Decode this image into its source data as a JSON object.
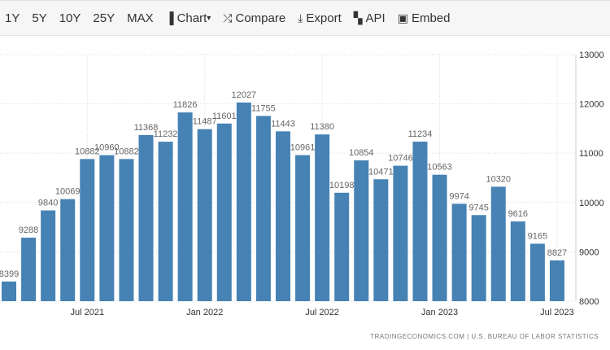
{
  "toolbar": {
    "items": [
      {
        "label": "1Y",
        "icon": ""
      },
      {
        "label": "5Y",
        "icon": ""
      },
      {
        "label": "10Y",
        "icon": ""
      },
      {
        "label": "25Y",
        "icon": ""
      },
      {
        "label": "MAX",
        "icon": ""
      },
      {
        "label": "Chart",
        "icon": "bar-chart-icon"
      },
      {
        "label": "Compare",
        "icon": "shuffle-icon"
      },
      {
        "label": "Export",
        "icon": "download-icon"
      },
      {
        "label": "API",
        "icon": "grid-icon"
      },
      {
        "label": "Embed",
        "icon": "image-icon"
      }
    ]
  },
  "source": "TRADINGECONOMICS.COM | U.S. BUREAU OF LABOR STATISTICS",
  "colors": {
    "bar": "#4682b4",
    "label": "#666666"
  },
  "chart_data": {
    "type": "bar",
    "title": "",
    "categories": [
      "Mar 2021",
      "Apr 2021",
      "May 2021",
      "Jun 2021",
      "Jul 2021",
      "Aug 2021",
      "Sep 2021",
      "Oct 2021",
      "Nov 2021",
      "Dec 2021",
      "Jan 2022",
      "Feb 2022",
      "Mar 2022",
      "Apr 2022",
      "May 2022",
      "Jun 2022",
      "Jul 2022",
      "Aug 2022",
      "Sep 2022",
      "Oct 2022",
      "Nov 2022",
      "Dec 2022",
      "Jan 2023",
      "Feb 2023",
      "Mar 2023",
      "Apr 2023",
      "May 2023",
      "Jun 2023",
      "Jul 2023"
    ],
    "values": [
      8399,
      9288,
      9840,
      10069,
      10882,
      10960,
      10882,
      11368,
      11232,
      11826,
      11487,
      11601,
      12027,
      11755,
      11443,
      10961,
      11380,
      10198,
      10854,
      10471,
      10746,
      11234,
      10563,
      9974,
      9745,
      10320,
      9616,
      9165,
      8827
    ],
    "x_ticks": [
      {
        "index": 4,
        "label": "Jul 2021"
      },
      {
        "index": 10,
        "label": "Jan 2022"
      },
      {
        "index": 16,
        "label": "Jul 2022"
      },
      {
        "index": 22,
        "label": "Jan 2023"
      },
      {
        "index": 28,
        "label": "Jul 2023"
      }
    ],
    "y_ticks": [
      8000,
      9000,
      10000,
      11000,
      12000,
      13000
    ],
    "ylim": [
      8000,
      13000
    ],
    "grid": true,
    "axis_position": "right"
  }
}
